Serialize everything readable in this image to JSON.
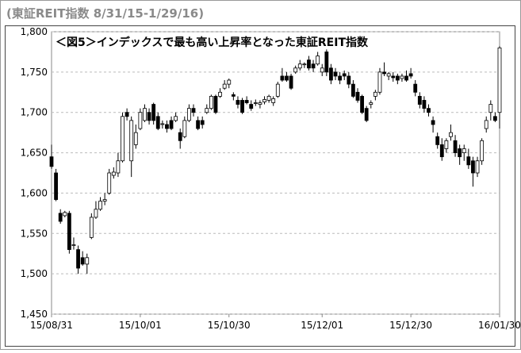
{
  "chart_data": {
    "type": "candlestick",
    "title": "(東証REIT指数 8/31/15-1/29/16)",
    "annotation": "＜図5＞インデックスで最も高い上昇率となった東証REIT指数",
    "ylim": [
      1450,
      1800
    ],
    "yticks": [
      {
        "value": 1450,
        "label": "1,450"
      },
      {
        "value": 1500,
        "label": "1,500"
      },
      {
        "value": 1550,
        "label": "1,550"
      },
      {
        "value": 1600,
        "label": "1,600"
      },
      {
        "value": 1650,
        "label": "1,650"
      },
      {
        "value": 1700,
        "label": "1,700"
      },
      {
        "value": 1750,
        "label": "1,750"
      },
      {
        "value": 1800,
        "label": "1,800"
      }
    ],
    "xlim": [
      0,
      101
    ],
    "xticks": [
      {
        "value": 0,
        "label": "15/08/31"
      },
      {
        "value": 20,
        "label": "15/10/01"
      },
      {
        "value": 40,
        "label": "15/10/30"
      },
      {
        "value": 61,
        "label": "15/12/01"
      },
      {
        "value": 81,
        "label": "15/12/30"
      },
      {
        "value": 101,
        "label": "16/01/30"
      }
    ],
    "grid": true,
    "up_color": "#ffffff",
    "down_color": "#000000",
    "edge_color": "#000000",
    "x": [
      0,
      1,
      2,
      3,
      4,
      5,
      6,
      7,
      8,
      9,
      10,
      11,
      12,
      13,
      14,
      15,
      16,
      17,
      18,
      19,
      20,
      21,
      22,
      23,
      24,
      25,
      26,
      27,
      28,
      29,
      30,
      31,
      32,
      33,
      34,
      35,
      36,
      37,
      38,
      39,
      40,
      41,
      42,
      43,
      44,
      45,
      46,
      47,
      48,
      49,
      50,
      51,
      52,
      53,
      54,
      55,
      56,
      57,
      58,
      59,
      60,
      61,
      62,
      63,
      64,
      65,
      66,
      67,
      68,
      69,
      70,
      71,
      72,
      73,
      74,
      75,
      76,
      77,
      78,
      79,
      80,
      81,
      82,
      83,
      84,
      85,
      86,
      87,
      88,
      89,
      90,
      91,
      92,
      93,
      94,
      95,
      96,
      97,
      98,
      99,
      100,
      101
    ],
    "open": [
      1645,
      1625,
      1575,
      1572,
      1575,
      1535,
      1530,
      1520,
      1512,
      1545,
      1570,
      1580,
      1590,
      1600,
      1622,
      1625,
      1640,
      1700,
      1640,
      1660,
      1680,
      1690,
      1700,
      1710,
      1695,
      1685,
      1685,
      1690,
      1690,
      1675,
      1670,
      1690,
      1705,
      1690,
      1690,
      1700,
      1705,
      1720,
      1720,
      1730,
      1735,
      1722,
      1715,
      1715,
      1715,
      1710,
      1712,
      1710,
      1713,
      1715,
      1712,
      1720,
      1745,
      1745,
      1745,
      1750,
      1755,
      1760,
      1765,
      1760,
      1760,
      1750,
      1775,
      1755,
      1750,
      1745,
      1748,
      1745,
      1735,
      1725,
      1720,
      1705,
      1710,
      1720,
      1725,
      1750,
      1745,
      1745,
      1745,
      1742,
      1745,
      1748,
      1735,
      1720,
      1715,
      1705,
      1690,
      1670,
      1660,
      1655,
      1670,
      1665,
      1655,
      1650,
      1645,
      1640,
      1625,
      1640,
      1680,
      1700,
      1695,
      1700
    ],
    "high": [
      1660,
      1630,
      1580,
      1578,
      1578,
      1545,
      1535,
      1528,
      1525,
      1575,
      1590,
      1595,
      1600,
      1630,
      1632,
      1650,
      1700,
      1705,
      1695,
      1685,
      1705,
      1710,
      1705,
      1712,
      1700,
      1690,
      1690,
      1695,
      1700,
      1680,
      1695,
      1710,
      1710,
      1695,
      1695,
      1710,
      1722,
      1722,
      1730,
      1740,
      1742,
      1725,
      1720,
      1718,
      1720,
      1715,
      1716,
      1715,
      1720,
      1722,
      1720,
      1738,
      1755,
      1750,
      1748,
      1758,
      1765,
      1762,
      1770,
      1765,
      1775,
      1760,
      1778,
      1760,
      1755,
      1750,
      1752,
      1750,
      1740,
      1730,
      1722,
      1708,
      1715,
      1728,
      1755,
      1762,
      1750,
      1750,
      1748,
      1748,
      1752,
      1755,
      1740,
      1725,
      1720,
      1710,
      1695,
      1675,
      1668,
      1668,
      1685,
      1672,
      1660,
      1660,
      1655,
      1645,
      1645,
      1668,
      1695,
      1715,
      1700,
      1782
    ],
    "low": [
      1630,
      1590,
      1562,
      1570,
      1525,
      1530,
      1500,
      1510,
      1500,
      1543,
      1568,
      1578,
      1585,
      1598,
      1618,
      1620,
      1638,
      1690,
      1620,
      1655,
      1678,
      1688,
      1685,
      1685,
      1678,
      1680,
      1675,
      1678,
      1688,
      1655,
      1668,
      1688,
      1695,
      1678,
      1680,
      1698,
      1703,
      1698,
      1718,
      1728,
      1730,
      1715,
      1705,
      1698,
      1710,
      1702,
      1708,
      1705,
      1710,
      1712,
      1708,
      1718,
      1738,
      1738,
      1728,
      1748,
      1752,
      1755,
      1752,
      1750,
      1758,
      1745,
      1745,
      1735,
      1740,
      1735,
      1740,
      1730,
      1718,
      1712,
      1698,
      1688,
      1705,
      1715,
      1722,
      1745,
      1740,
      1738,
      1735,
      1738,
      1738,
      1742,
      1720,
      1705,
      1700,
      1695,
      1675,
      1655,
      1640,
      1650,
      1665,
      1645,
      1635,
      1640,
      1630,
      1608,
      1620,
      1635,
      1675,
      1690,
      1688,
      1680
    ],
    "close": [
      1633,
      1592,
      1565,
      1576,
      1530,
      1536,
      1507,
      1512,
      1520,
      1570,
      1580,
      1590,
      1592,
      1625,
      1626,
      1640,
      1695,
      1695,
      1690,
      1675,
      1700,
      1705,
      1690,
      1690,
      1680,
      1686,
      1680,
      1680,
      1695,
      1665,
      1690,
      1705,
      1700,
      1680,
      1685,
      1705,
      1720,
      1700,
      1725,
      1735,
      1740,
      1720,
      1710,
      1700,
      1712,
      1705,
      1712,
      1712,
      1716,
      1720,
      1717,
      1735,
      1740,
      1740,
      1730,
      1755,
      1760,
      1760,
      1755,
      1755,
      1770,
      1755,
      1750,
      1740,
      1745,
      1740,
      1745,
      1735,
      1720,
      1715,
      1700,
      1690,
      1712,
      1725,
      1750,
      1748,
      1748,
      1743,
      1740,
      1745,
      1740,
      1745,
      1725,
      1710,
      1705,
      1700,
      1685,
      1660,
      1645,
      1665,
      1675,
      1650,
      1645,
      1655,
      1635,
      1625,
      1640,
      1665,
      1690,
      1710,
      1690,
      1780
    ]
  }
}
